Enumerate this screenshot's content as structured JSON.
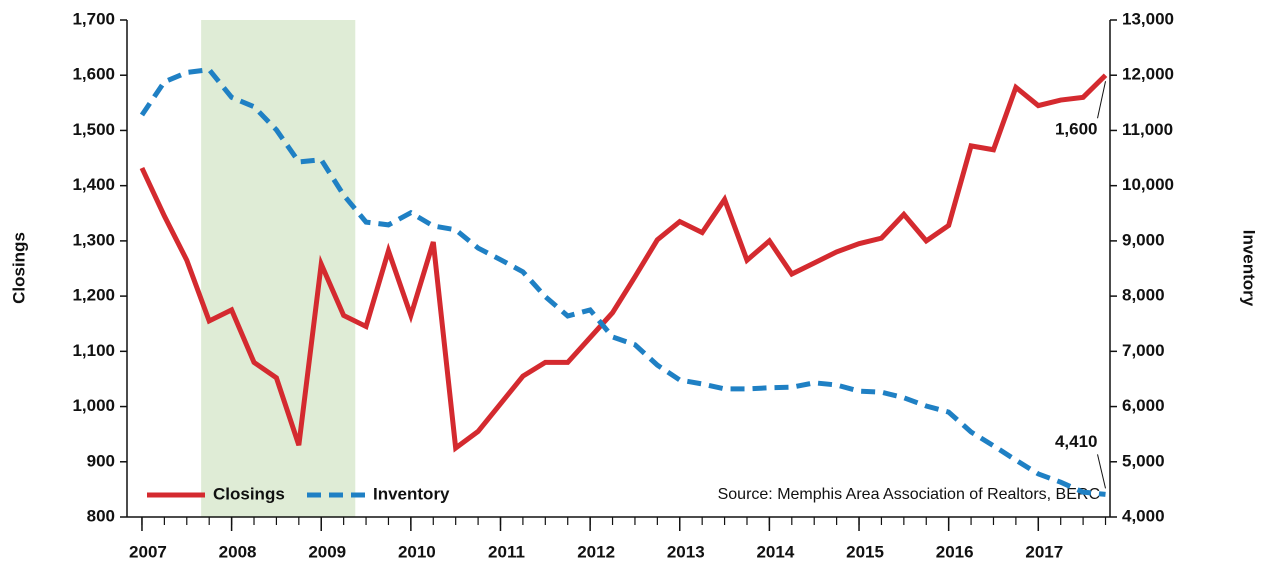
{
  "chart_data": {
    "type": "line",
    "x": [
      2007,
      2007.25,
      2007.5,
      2007.75,
      2008,
      2008.25,
      2008.5,
      2008.75,
      2009,
      2009.25,
      2009.5,
      2009.75,
      2010,
      2010.25,
      2010.5,
      2010.75,
      2011,
      2011.25,
      2011.5,
      2011.75,
      2012,
      2012.25,
      2012.5,
      2012.75,
      2013,
      2013.25,
      2013.5,
      2013.75,
      2014,
      2014.25,
      2014.5,
      2014.75,
      2015,
      2015.25,
      2015.5,
      2015.75,
      2016,
      2016.25,
      2016.5,
      2016.75,
      2017,
      2017.25,
      2017.5,
      2017.75
    ],
    "series": [
      {
        "name": "Closings",
        "color": "#d42a2f",
        "axis": "y",
        "dashed": false,
        "values": [
          1432,
          1345,
          1265,
          1155,
          1175,
          1080,
          1052,
          930,
          1258,
          1165,
          1145,
          1282,
          1165,
          1298,
          925,
          955,
          1005,
          1055,
          1080,
          1080,
          1125,
          1170,
          1235,
          1302,
          1335,
          1315,
          1375,
          1265,
          1300,
          1240,
          1260,
          1280,
          1295,
          1305,
          1348,
          1300,
          1328,
          1472,
          1465,
          1578,
          1545,
          1555,
          1560,
          1600
        ],
        "value_labels": [
          null,
          null,
          null,
          null,
          null,
          null,
          null,
          null,
          null,
          null,
          null,
          null,
          null,
          null,
          null,
          null,
          null,
          null,
          null,
          null,
          null,
          null,
          null,
          null,
          null,
          null,
          null,
          null,
          null,
          null,
          null,
          null,
          null,
          null,
          null,
          null,
          null,
          null,
          null,
          null,
          null,
          null,
          null,
          "1,600"
        ]
      },
      {
        "name": "Inventory",
        "color": "#1f80c4",
        "axis": "y2",
        "dashed": true,
        "values": [
          11280,
          11880,
          12050,
          12100,
          11600,
          11430,
          11010,
          10430,
          10470,
          9830,
          9340,
          9290,
          9510,
          9270,
          9200,
          8870,
          8660,
          8440,
          7990,
          7640,
          7750,
          7260,
          7120,
          6750,
          6480,
          6410,
          6320,
          6320,
          6340,
          6350,
          6430,
          6390,
          6280,
          6260,
          6160,
          6010,
          5900,
          5540,
          5290,
          5030,
          4780,
          4630,
          4450,
          4410
        ],
        "value_labels": [
          null,
          null,
          null,
          null,
          null,
          null,
          null,
          null,
          null,
          null,
          null,
          null,
          null,
          null,
          null,
          null,
          null,
          null,
          null,
          null,
          null,
          null,
          null,
          null,
          null,
          null,
          null,
          null,
          null,
          null,
          null,
          null,
          null,
          null,
          null,
          null,
          null,
          null,
          null,
          null,
          null,
          null,
          null,
          "4,410"
        ]
      }
    ],
    "ylabel": "Closings",
    "y2label": "Inventory",
    "source": "Source: Memphis Area Association of Realtors, BERC",
    "xlim": [
      2006.833,
      2017.8
    ],
    "xticks": [
      2007,
      2008,
      2009,
      2010,
      2011,
      2012,
      2013,
      2014,
      2015,
      2016,
      2017
    ],
    "ylim": [
      800,
      1700
    ],
    "yticks": [
      800,
      900,
      {
        "value": 1000,
        "label": "1,000"
      },
      {
        "value": 1100,
        "label": "1,100"
      },
      {
        "value": 1200,
        "label": "1,200"
      },
      {
        "value": 1300,
        "label": "1,300"
      },
      {
        "value": 1400,
        "label": "1,400"
      },
      {
        "value": 1500,
        "label": "1,500"
      },
      {
        "value": 1600,
        "label": "1,600"
      },
      {
        "value": 1700,
        "label": "1,700"
      }
    ],
    "y2lim": [
      4000,
      13000
    ],
    "y2ticks": [
      {
        "value": 4000,
        "label": "4,000"
      },
      {
        "value": 5000,
        "label": "5,000"
      },
      {
        "value": 6000,
        "label": "6,000"
      },
      {
        "value": 7000,
        "label": "7,000"
      },
      {
        "value": 8000,
        "label": "8,000"
      },
      {
        "value": 9000,
        "label": "9,000"
      },
      {
        "value": 10000,
        "label": "10,000"
      },
      {
        "value": 11000,
        "label": "11,000"
      },
      {
        "value": 12000,
        "label": "12,000"
      },
      {
        "value": 13000,
        "label": "13,000"
      }
    ],
    "shaded_xrange": [
      2007.66,
      2009.38
    ],
    "shade_color": "#dfecd6",
    "legend": "lower left"
  }
}
